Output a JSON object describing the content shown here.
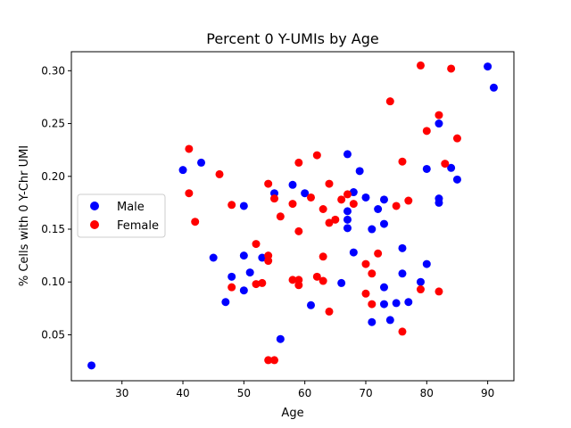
{
  "chart_data": {
    "type": "scatter",
    "title": "Percent 0 Y-UMIs by Age",
    "xlabel": "Age",
    "ylabel": "% Cells with 0 Y-Chr UMI",
    "xlim": [
      21.7,
      94.3
    ],
    "ylim": [
      0.0065,
      0.318
    ],
    "xticks": [
      30,
      40,
      50,
      60,
      70,
      80,
      90
    ],
    "yticks": [
      0.05,
      0.1,
      0.15,
      0.2,
      0.25,
      0.3
    ],
    "ytick_labels": [
      "0.05",
      "0.10",
      "0.15",
      "0.20",
      "0.25",
      "0.30"
    ],
    "grid": false,
    "legend_position": "center-left",
    "series": [
      {
        "name": "Male",
        "color": "#0000ff",
        "points": [
          [
            25,
            0.021
          ],
          [
            40,
            0.206
          ],
          [
            43,
            0.213
          ],
          [
            45,
            0.123
          ],
          [
            47,
            0.081
          ],
          [
            48,
            0.105
          ],
          [
            50,
            0.172
          ],
          [
            50,
            0.125
          ],
          [
            50,
            0.092
          ],
          [
            51,
            0.109
          ],
          [
            53,
            0.123
          ],
          [
            55,
            0.184
          ],
          [
            56,
            0.046
          ],
          [
            58,
            0.192
          ],
          [
            60,
            0.184
          ],
          [
            61,
            0.078
          ],
          [
            66,
            0.099
          ],
          [
            67,
            0.221
          ],
          [
            67,
            0.167
          ],
          [
            67,
            0.159
          ],
          [
            67,
            0.151
          ],
          [
            68,
            0.185
          ],
          [
            68,
            0.128
          ],
          [
            69,
            0.205
          ],
          [
            70,
            0.18
          ],
          [
            71,
            0.15
          ],
          [
            71,
            0.062
          ],
          [
            72,
            0.169
          ],
          [
            73,
            0.178
          ],
          [
            73,
            0.155
          ],
          [
            73,
            0.095
          ],
          [
            73,
            0.079
          ],
          [
            74,
            0.064
          ],
          [
            75,
            0.08
          ],
          [
            76,
            0.132
          ],
          [
            76,
            0.108
          ],
          [
            77,
            0.081
          ],
          [
            79,
            0.1
          ],
          [
            80,
            0.207
          ],
          [
            80,
            0.117
          ],
          [
            82,
            0.25
          ],
          [
            82,
            0.179
          ],
          [
            82,
            0.175
          ],
          [
            84,
            0.208
          ],
          [
            85,
            0.197
          ],
          [
            90,
            0.304
          ],
          [
            91,
            0.284
          ]
        ]
      },
      {
        "name": "Female",
        "color": "#ff0000",
        "points": [
          [
            41,
            0.226
          ],
          [
            41,
            0.184
          ],
          [
            42,
            0.157
          ],
          [
            46,
            0.202
          ],
          [
            48,
            0.173
          ],
          [
            48,
            0.095
          ],
          [
            52,
            0.136
          ],
          [
            52,
            0.098
          ],
          [
            53,
            0.099
          ],
          [
            54,
            0.193
          ],
          [
            54,
            0.125
          ],
          [
            54,
            0.12
          ],
          [
            54,
            0.026
          ],
          [
            55,
            0.179
          ],
          [
            55,
            0.026
          ],
          [
            56,
            0.162
          ],
          [
            58,
            0.174
          ],
          [
            58,
            0.102
          ],
          [
            59,
            0.213
          ],
          [
            59,
            0.148
          ],
          [
            59,
            0.102
          ],
          [
            59,
            0.097
          ],
          [
            61,
            0.18
          ],
          [
            62,
            0.22
          ],
          [
            62,
            0.105
          ],
          [
            63,
            0.169
          ],
          [
            63,
            0.124
          ],
          [
            63,
            0.101
          ],
          [
            64,
            0.193
          ],
          [
            64,
            0.156
          ],
          [
            64,
            0.072
          ],
          [
            65,
            0.159
          ],
          [
            66,
            0.178
          ],
          [
            67,
            0.183
          ],
          [
            68,
            0.174
          ],
          [
            70,
            0.117
          ],
          [
            70,
            0.089
          ],
          [
            71,
            0.108
          ],
          [
            71,
            0.079
          ],
          [
            72,
            0.127
          ],
          [
            74,
            0.271
          ],
          [
            75,
            0.172
          ],
          [
            76,
            0.214
          ],
          [
            76,
            0.053
          ],
          [
            77,
            0.177
          ],
          [
            79,
            0.305
          ],
          [
            79,
            0.093
          ],
          [
            80,
            0.243
          ],
          [
            82,
            0.258
          ],
          [
            82,
            0.091
          ],
          [
            83,
            0.212
          ],
          [
            84,
            0.302
          ],
          [
            85,
            0.236
          ]
        ]
      }
    ]
  }
}
